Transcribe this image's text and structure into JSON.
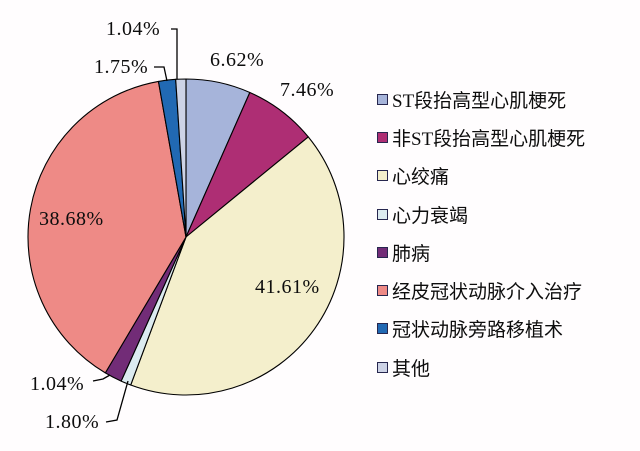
{
  "chart_data": {
    "type": "pie",
    "title": "",
    "legend_position": "right",
    "start_angle_deg": 0,
    "direction": "clockwise",
    "total": 100.0,
    "outline_color": "#000000",
    "background_color": "#fffdfe",
    "slices": [
      {
        "name": "ST段抬高型心肌梗死",
        "value": 6.62,
        "display": "6.62%",
        "color": "#a6b4da"
      },
      {
        "name": "非ST段抬高型心肌梗死",
        "value": 7.46,
        "display": "7.46%",
        "color": "#ae2e74"
      },
      {
        "name": "心绞痛",
        "value": 41.61,
        "display": "41.61%",
        "color": "#f4efcc"
      },
      {
        "name": "心力衰竭",
        "value": 1.04,
        "display": "1.04%",
        "color": "#dcebf0"
      },
      {
        "name": "肺病",
        "value": 1.8,
        "display": "1.80%",
        "color": "#722c77"
      },
      {
        "name": "经皮冠状动脉介入治疗",
        "value": 38.68,
        "display": "38.68%",
        "color": "#ee8a86"
      },
      {
        "name": "冠状动脉旁路移植术",
        "value": 1.75,
        "display": "1.75%",
        "color": "#2169b3"
      },
      {
        "name": "其他",
        "value": 1.04,
        "display": "1.04%",
        "color": "#cdd3e6"
      }
    ]
  }
}
